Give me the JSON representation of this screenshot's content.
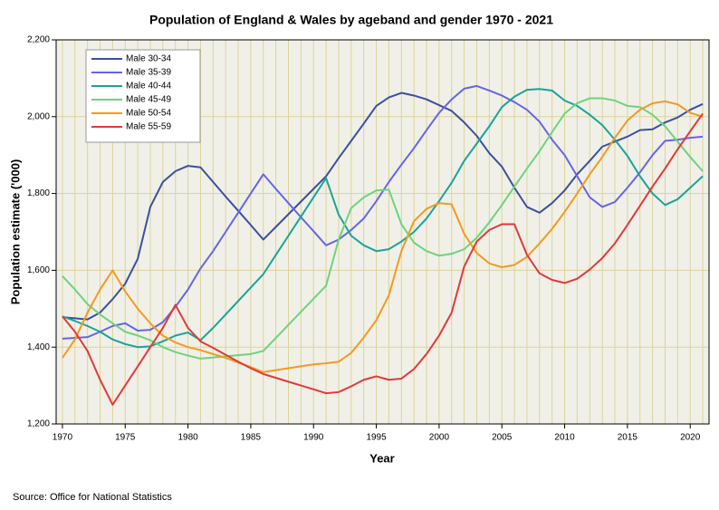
{
  "chart_data": {
    "type": "line",
    "title": "Population of England & Wales by ageband and gender 1970 - 2021",
    "x_label": "Year",
    "y_label": "Population estimate ('000)",
    "source": "Source: Office for National Statistics",
    "x": [
      1970,
      1971,
      1972,
      1973,
      1974,
      1975,
      1976,
      1977,
      1978,
      1979,
      1980,
      1981,
      1982,
      1983,
      1984,
      1985,
      1986,
      1987,
      1988,
      1989,
      1990,
      1991,
      1992,
      1993,
      1994,
      1995,
      1996,
      1997,
      1998,
      1999,
      2000,
      2001,
      2002,
      2003,
      2004,
      2005,
      2006,
      2007,
      2008,
      2009,
      2010,
      2011,
      2012,
      2013,
      2014,
      2015,
      2016,
      2017,
      2018,
      2019,
      2020,
      2021
    ],
    "xlim": [
      1969.5,
      2021.5
    ],
    "xticks": [
      1970,
      1975,
      1980,
      1985,
      1990,
      1995,
      2000,
      2005,
      2010,
      2015,
      2020
    ],
    "ylim": [
      1200,
      2200
    ],
    "yticks": [
      {
        "value": 1200,
        "label": "1,200"
      },
      {
        "value": 1400,
        "label": "1,400"
      },
      {
        "value": 1600,
        "label": "1,600"
      },
      {
        "value": 1800,
        "label": "1,800"
      },
      {
        "value": 2000,
        "label": "2,000"
      },
      {
        "value": 2200,
        "label": "2,200"
      }
    ],
    "grid": true,
    "legend_position": "upper left",
    "series": [
      {
        "name": "Male 30-34",
        "color": "#3c4f9f",
        "values": [
          1478,
          1475,
          1472,
          1490,
          1525,
          1565,
          1630,
          1765,
          1830,
          1858,
          1872,
          1868,
          1830,
          1792,
          1755,
          1718,
          1680,
          1713,
          1746,
          1779,
          1812,
          1845,
          1892,
          1937,
          1982,
          2028,
          2050,
          2062,
          2055,
          2045,
          2030,
          2015,
          1985,
          1950,
          1905,
          1870,
          1815,
          1765,
          1750,
          1775,
          1808,
          1850,
          1885,
          1922,
          1935,
          1948,
          1965,
          1967,
          1985,
          1998,
          2018,
          2033
        ]
      },
      {
        "name": "Male 35-39",
        "color": "#6565e6",
        "values": [
          1422,
          1424,
          1426,
          1440,
          1455,
          1462,
          1443,
          1445,
          1465,
          1505,
          1550,
          1605,
          1650,
          1700,
          1750,
          1800,
          1850,
          1812,
          1775,
          1738,
          1702,
          1665,
          1680,
          1705,
          1735,
          1780,
          1830,
          1875,
          1918,
          1965,
          2010,
          2045,
          2073,
          2080,
          2068,
          2055,
          2038,
          2018,
          1987,
          1940,
          1900,
          1845,
          1790,
          1765,
          1778,
          1815,
          1855,
          1900,
          1937,
          1940,
          1945,
          1948
        ]
      },
      {
        "name": "Male 40-44",
        "color": "#1aa39a",
        "values": [
          1480,
          1468,
          1455,
          1440,
          1420,
          1408,
          1400,
          1402,
          1415,
          1430,
          1438,
          1418,
          1450,
          1485,
          1520,
          1555,
          1590,
          1640,
          1690,
          1740,
          1790,
          1840,
          1745,
          1690,
          1665,
          1650,
          1655,
          1675,
          1700,
          1735,
          1780,
          1828,
          1885,
          1930,
          1975,
          2025,
          2052,
          2070,
          2072,
          2068,
          2042,
          2028,
          2005,
          1978,
          1940,
          1898,
          1845,
          1800,
          1770,
          1785,
          1815,
          1845
        ]
      },
      {
        "name": "Male 45-49",
        "color": "#6cd47b",
        "values": [
          1585,
          1550,
          1512,
          1485,
          1462,
          1440,
          1430,
          1418,
          1400,
          1387,
          1378,
          1370,
          1373,
          1376,
          1379,
          1382,
          1390,
          1424,
          1458,
          1492,
          1526,
          1560,
          1680,
          1762,
          1790,
          1808,
          1810,
          1720,
          1672,
          1650,
          1638,
          1643,
          1655,
          1685,
          1725,
          1770,
          1818,
          1865,
          1910,
          1960,
          2008,
          2035,
          2048,
          2048,
          2042,
          2028,
          2025,
          2005,
          1975,
          1935,
          1895,
          1858
        ]
      },
      {
        "name": "Male 50-54",
        "color": "#f39a1f",
        "values": [
          1372,
          1420,
          1490,
          1550,
          1600,
          1545,
          1500,
          1462,
          1430,
          1412,
          1400,
          1392,
          1382,
          1372,
          1360,
          1348,
          1335,
          1340,
          1345,
          1350,
          1355,
          1358,
          1362,
          1385,
          1425,
          1470,
          1535,
          1650,
          1728,
          1760,
          1775,
          1772,
          1695,
          1645,
          1618,
          1608,
          1614,
          1635,
          1670,
          1708,
          1752,
          1800,
          1850,
          1895,
          1945,
          1990,
          2018,
          2035,
          2040,
          2032,
          2010,
          2000
        ]
      },
      {
        "name": "Male 55-59",
        "color": "#e03a3a",
        "values": [
          1480,
          1440,
          1390,
          1315,
          1250,
          1300,
          1350,
          1400,
          1450,
          1510,
          1450,
          1415,
          1398,
          1380,
          1362,
          1345,
          1330,
          1320,
          1310,
          1300,
          1290,
          1280,
          1283,
          1298,
          1315,
          1324,
          1315,
          1318,
          1343,
          1382,
          1430,
          1490,
          1610,
          1675,
          1705,
          1720,
          1720,
          1640,
          1592,
          1575,
          1567,
          1578,
          1602,
          1632,
          1670,
          1718,
          1768,
          1818,
          1865,
          1915,
          1962,
          2008
        ]
      }
    ]
  }
}
